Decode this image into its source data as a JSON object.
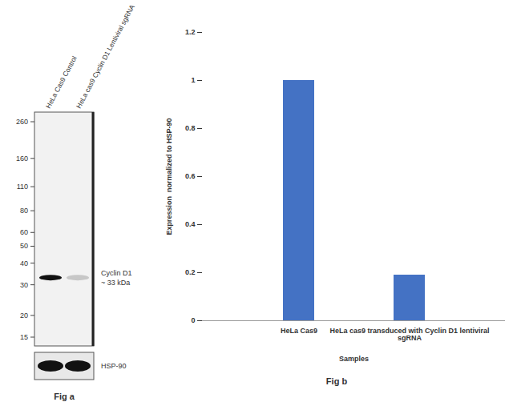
{
  "chart_data": {
    "type": "bar",
    "caption": "Fig b",
    "categories": [
      "HeLa Cas9",
      "HeLa cas9 transduced with Cyclin D1 lentiviral sgRNA"
    ],
    "values": [
      1,
      0.19
    ],
    "color": "#4472c4",
    "x_label": "Samples",
    "y_label": "Expression  normalized to HSP-90",
    "ylim": [
      0,
      1.2
    ],
    "yticks": [
      0,
      0.2,
      0.4,
      0.6,
      0.8,
      1,
      1.2
    ],
    "grid": false
  },
  "blot": {
    "caption": "Fig a",
    "lanes": [
      "HeLa Cas9 Control",
      "HeLa cas9 Cyclin D1 Lentiviral sgRNA"
    ],
    "markers": [
      260,
      160,
      110,
      80,
      60,
      50,
      40,
      30,
      20,
      15
    ],
    "band_kda": 33,
    "band_label": "Cyclin D1",
    "band_size_label": "~ 33 kDa",
    "loading_control": "HSP-90"
  }
}
